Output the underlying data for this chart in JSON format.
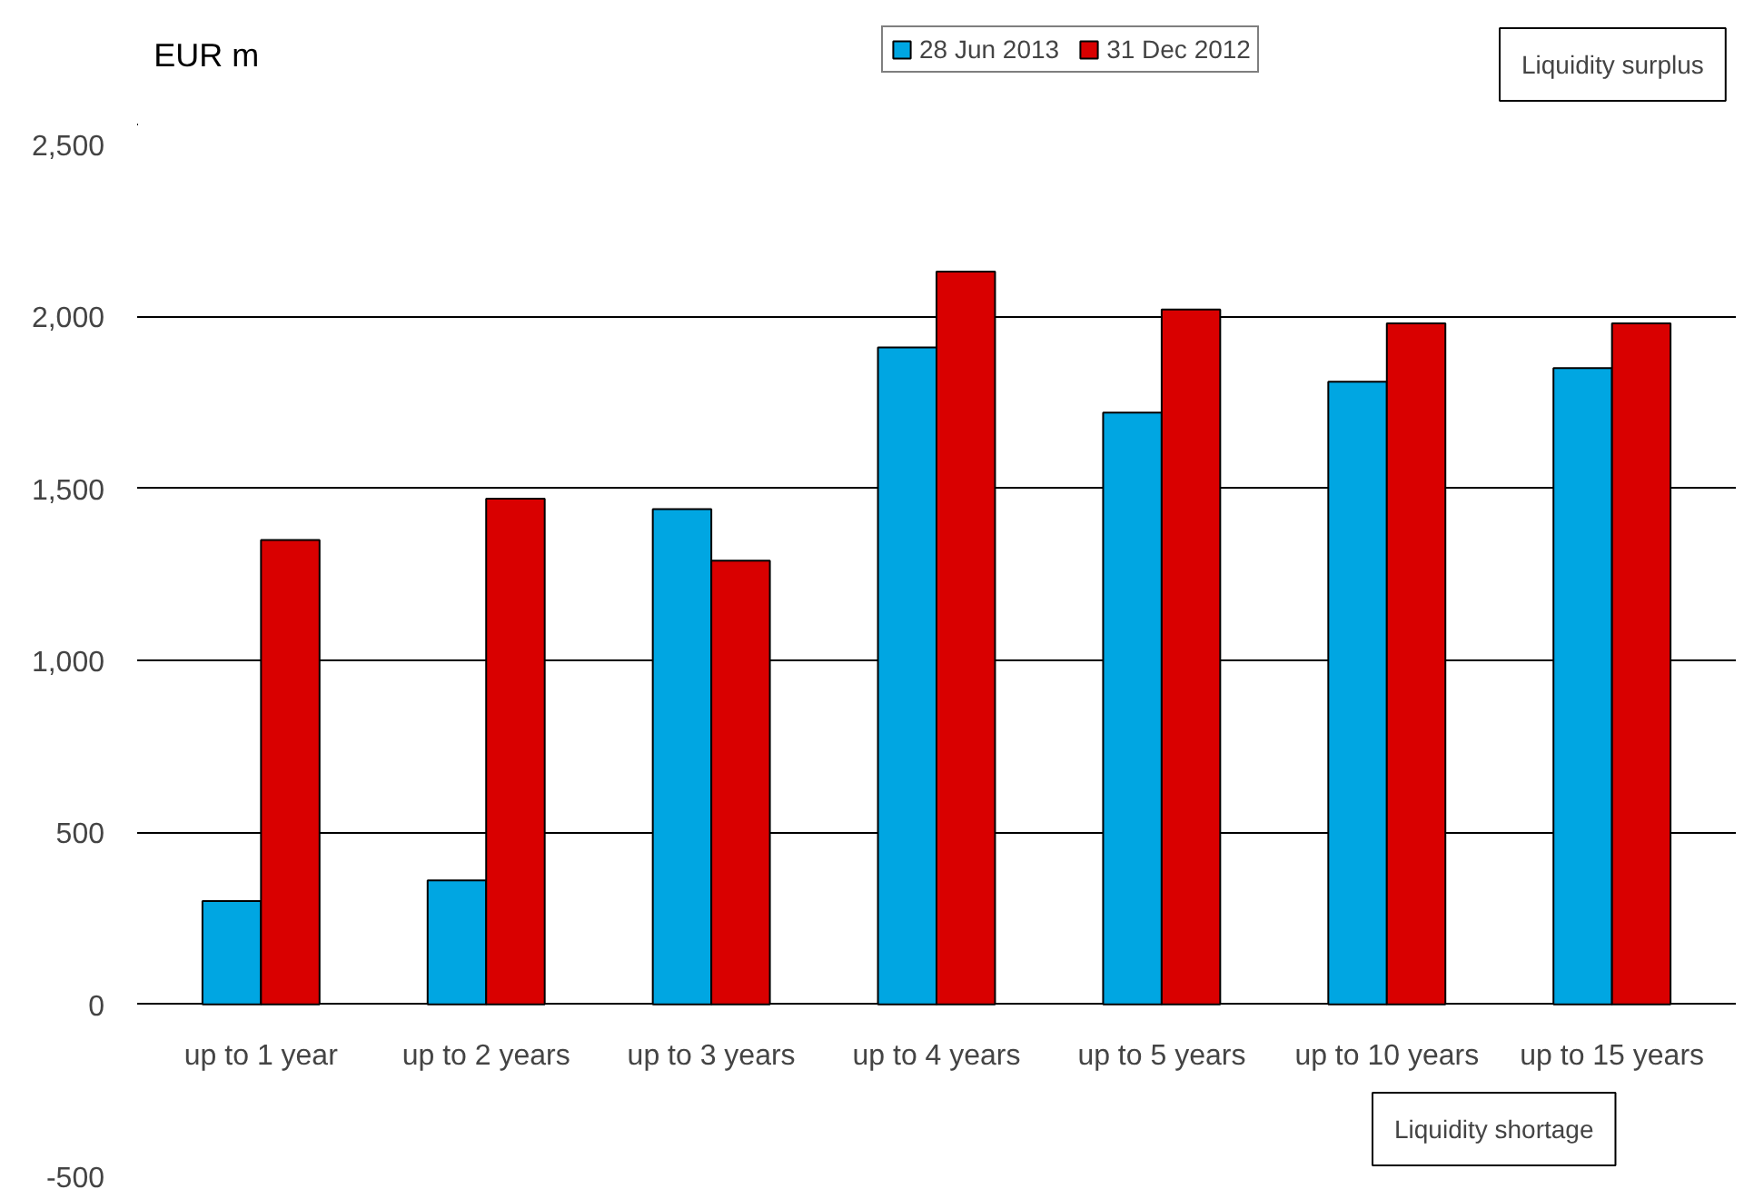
{
  "chart_data": {
    "type": "bar",
    "ylabel": "EUR m",
    "categories": [
      "up to 1 year",
      "up to 2 years",
      "up to 3 years",
      "up to 4 years",
      "up to 5 years",
      "up to 10 years",
      "up to 15 years"
    ],
    "series": [
      {
        "name": "28 Jun 2013",
        "color": "#00a6e2",
        "values": [
          300,
          360,
          1440,
          1910,
          1720,
          1810,
          1850
        ]
      },
      {
        "name": "31 Dec 2012",
        "color": "#d90000",
        "values": [
          1350,
          1470,
          1290,
          2130,
          2020,
          1980,
          1980
        ]
      }
    ],
    "ylim": [
      -500,
      2500
    ],
    "yticks": [
      {
        "value": -500,
        "label": "-500"
      },
      {
        "value": 0,
        "label": "0"
      },
      {
        "value": 500,
        "label": "500"
      },
      {
        "value": 1000,
        "label": "1,000"
      },
      {
        "value": 1500,
        "label": "1,500"
      },
      {
        "value": 2000,
        "label": "2,000"
      },
      {
        "value": 2500,
        "label": "2,500"
      }
    ],
    "grid": "y",
    "legend": "top",
    "annotations": [
      "Liquidity surplus",
      "Liquidity shortage"
    ]
  }
}
